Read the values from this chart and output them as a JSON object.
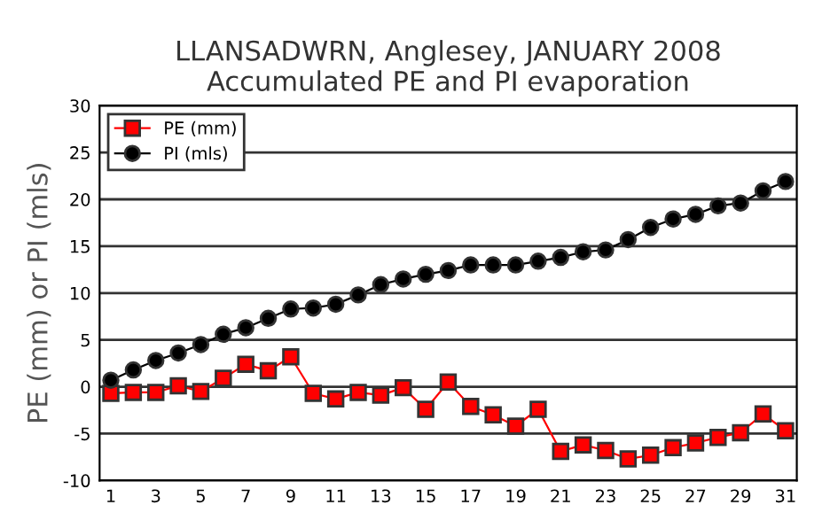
{
  "chart_data": {
    "type": "line",
    "title": "LLANSADWRN, Anglesey, JANUARY 2008\nAccumulated PE and PI evaporation",
    "ylabel": "PE (mm) or PI (mls)",
    "x": [
      1,
      2,
      3,
      4,
      5,
      6,
      7,
      8,
      9,
      10,
      11,
      12,
      13,
      14,
      15,
      16,
      17,
      18,
      19,
      20,
      21,
      22,
      23,
      24,
      25,
      26,
      27,
      28,
      29,
      30,
      31
    ],
    "series": [
      {
        "name": "PE (mm)",
        "color": "#ff0000",
        "marker": "square",
        "values": [
          -0.7,
          -0.6,
          -0.6,
          0.1,
          -0.5,
          0.9,
          2.4,
          1.7,
          3.2,
          -0.7,
          -1.3,
          -0.6,
          -0.9,
          -0.1,
          -2.4,
          0.5,
          -2.1,
          -3.0,
          -4.2,
          -2.4,
          -6.9,
          -6.2,
          -6.8,
          -7.7,
          -7.3,
          -6.5,
          -6.0,
          -5.4,
          -4.9,
          -2.9,
          -4.7
        ]
      },
      {
        "name": "PI (mls)",
        "color": "#000000",
        "marker": "circle",
        "values": [
          0.7,
          1.8,
          2.8,
          3.6,
          4.5,
          5.6,
          6.3,
          7.3,
          8.3,
          8.4,
          8.8,
          9.8,
          10.9,
          11.5,
          12.0,
          12.4,
          13.0,
          13.0,
          13.0,
          13.4,
          13.8,
          14.4,
          14.6,
          15.7,
          17.0,
          17.9,
          18.4,
          19.3,
          19.6,
          20.9,
          21.9
        ]
      }
    ],
    "xlim": [
      0.5,
      31.5
    ],
    "xticks": [
      1,
      3,
      5,
      7,
      9,
      11,
      13,
      15,
      17,
      19,
      21,
      23,
      25,
      27,
      29,
      31
    ],
    "ylim": [
      -10,
      30
    ],
    "yticks": [
      -10,
      -5,
      0,
      5,
      10,
      15,
      20,
      25,
      30
    ],
    "grid": "y",
    "legend": "top left"
  }
}
